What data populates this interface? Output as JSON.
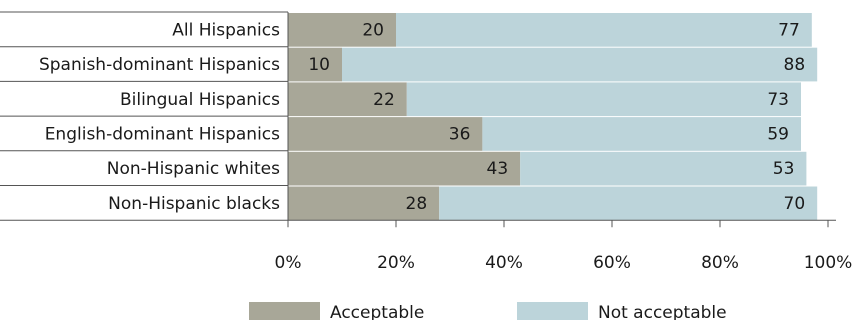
{
  "chart_data": {
    "type": "bar",
    "orientation": "horizontal",
    "stacked": true,
    "categories": [
      "All Hispanics",
      "Spanish-dominant Hispanics",
      "Bilingual Hispanics",
      "English-dominant Hispanics",
      "Non-Hispanic whites",
      "Non-Hispanic blacks"
    ],
    "series": [
      {
        "name": "Acceptable",
        "values": [
          20,
          10,
          22,
          36,
          43,
          28
        ],
        "color": "#a8a798"
      },
      {
        "name": "Not acceptable",
        "values": [
          77,
          88,
          73,
          59,
          53,
          70
        ],
        "color": "#bcd4da"
      }
    ],
    "x_ticks": [
      "0%",
      "20%",
      "40%",
      "60%",
      "80%",
      "100%"
    ],
    "xlim": [
      0,
      100
    ],
    "legend_position": "bottom",
    "title": "",
    "xlabel": "",
    "ylabel": ""
  }
}
